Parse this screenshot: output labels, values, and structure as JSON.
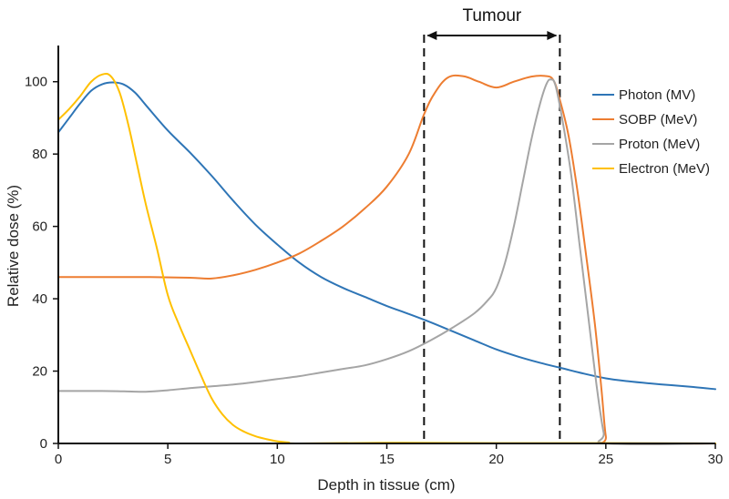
{
  "chart_data": {
    "type": "line",
    "xlabel": "Depth in tissue (cm)",
    "ylabel": "Relative dose (%)",
    "xlim": [
      0,
      30
    ],
    "ylim": [
      0,
      110
    ],
    "xticks": [
      0,
      5,
      10,
      15,
      20,
      25,
      30
    ],
    "yticks": [
      0,
      20,
      40,
      60,
      80,
      100
    ],
    "grid": false,
    "legend_position": "right",
    "annotation": {
      "label": "Tumour",
      "x_start": 16.7,
      "x_end": 22.9
    },
    "series": [
      {
        "name": "Photon (MV)",
        "color": "#2e75b6",
        "points": [
          [
            0,
            86
          ],
          [
            0.5,
            90
          ],
          [
            1,
            94
          ],
          [
            1.5,
            97.5
          ],
          [
            2,
            99.3
          ],
          [
            2.5,
            99.8
          ],
          [
            3,
            99.2
          ],
          [
            3.5,
            97
          ],
          [
            4,
            93.5
          ],
          [
            5,
            86.5
          ],
          [
            6,
            80.5
          ],
          [
            7,
            74
          ],
          [
            8,
            67
          ],
          [
            9,
            60.5
          ],
          [
            10,
            55
          ],
          [
            11,
            50
          ],
          [
            12,
            46
          ],
          [
            13,
            43
          ],
          [
            14,
            40.5
          ],
          [
            15,
            38
          ],
          [
            16,
            35.8
          ],
          [
            17,
            33.5
          ],
          [
            18,
            31
          ],
          [
            19,
            28.5
          ],
          [
            20,
            26
          ],
          [
            21,
            24
          ],
          [
            22,
            22.3
          ],
          [
            23,
            20.8
          ],
          [
            24,
            19.3
          ],
          [
            25,
            18
          ],
          [
            26,
            17.2
          ],
          [
            27,
            16.6
          ],
          [
            28,
            16.1
          ],
          [
            29,
            15.6
          ],
          [
            30,
            15
          ]
        ]
      },
      {
        "name": "SOBP (MeV)",
        "color": "#ed7d31",
        "points": [
          [
            0,
            46
          ],
          [
            2,
            46
          ],
          [
            4,
            46
          ],
          [
            6,
            45.8
          ],
          [
            7,
            45.6
          ],
          [
            8,
            46.5
          ],
          [
            9,
            48
          ],
          [
            10,
            50
          ],
          [
            11,
            52.5
          ],
          [
            12,
            56
          ],
          [
            13,
            60
          ],
          [
            14,
            65
          ],
          [
            15,
            71
          ],
          [
            16,
            80
          ],
          [
            16.7,
            91
          ],
          [
            17.2,
            97
          ],
          [
            17.8,
            101.2
          ],
          [
            18.5,
            101.5
          ],
          [
            19.2,
            100
          ],
          [
            20,
            98.4
          ],
          [
            20.8,
            100
          ],
          [
            21.6,
            101.4
          ],
          [
            22.2,
            101.6
          ],
          [
            22.6,
            100.5
          ],
          [
            22.9,
            95
          ],
          [
            23.3,
            85
          ],
          [
            23.7,
            70
          ],
          [
            24.1,
            52
          ],
          [
            24.5,
            33
          ],
          [
            24.8,
            15
          ],
          [
            25,
            2
          ],
          [
            25.2,
            0
          ],
          [
            30,
            0
          ]
        ]
      },
      {
        "name": "Proton (MeV)",
        "color": "#a5a5a5",
        "points": [
          [
            0,
            14.5
          ],
          [
            2,
            14.5
          ],
          [
            3,
            14.4
          ],
          [
            4,
            14.3
          ],
          [
            5,
            14.7
          ],
          [
            6,
            15.3
          ],
          [
            7,
            15.8
          ],
          [
            8,
            16.3
          ],
          [
            9,
            17
          ],
          [
            10,
            17.8
          ],
          [
            11,
            18.6
          ],
          [
            12,
            19.6
          ],
          [
            13,
            20.6
          ],
          [
            14,
            21.6
          ],
          [
            15,
            23.3
          ],
          [
            16,
            25.5
          ],
          [
            17,
            28.5
          ],
          [
            18,
            32
          ],
          [
            19,
            36
          ],
          [
            19.6,
            39.5
          ],
          [
            20,
            43
          ],
          [
            20.4,
            50
          ],
          [
            20.8,
            60
          ],
          [
            21.2,
            72
          ],
          [
            21.6,
            84
          ],
          [
            22,
            94
          ],
          [
            22.3,
            99.5
          ],
          [
            22.5,
            100.6
          ],
          [
            22.7,
            99
          ],
          [
            23,
            90
          ],
          [
            23.4,
            75
          ],
          [
            23.8,
            55
          ],
          [
            24.2,
            35
          ],
          [
            24.6,
            15
          ],
          [
            24.9,
            3
          ],
          [
            25.1,
            0
          ],
          [
            30,
            0
          ]
        ]
      },
      {
        "name": "Electron (MeV)",
        "color": "#ffc000",
        "points": [
          [
            0,
            89.5
          ],
          [
            0.5,
            92.5
          ],
          [
            1,
            96
          ],
          [
            1.5,
            100
          ],
          [
            2,
            102
          ],
          [
            2.4,
            101.5
          ],
          [
            2.8,
            97
          ],
          [
            3.2,
            88
          ],
          [
            3.6,
            77
          ],
          [
            4,
            66
          ],
          [
            4.5,
            54
          ],
          [
            5,
            41
          ],
          [
            5.5,
            33
          ],
          [
            6,
            26
          ],
          [
            6.5,
            19
          ],
          [
            7,
            12.5
          ],
          [
            7.5,
            8
          ],
          [
            8,
            5
          ],
          [
            8.5,
            3.2
          ],
          [
            9,
            2
          ],
          [
            9.5,
            1.2
          ],
          [
            10,
            0.6
          ],
          [
            10.5,
            0.3
          ],
          [
            11,
            0
          ],
          [
            15,
            0.2
          ],
          [
            20,
            0.1
          ],
          [
            25,
            0.1
          ],
          [
            30,
            0
          ]
        ]
      }
    ]
  }
}
